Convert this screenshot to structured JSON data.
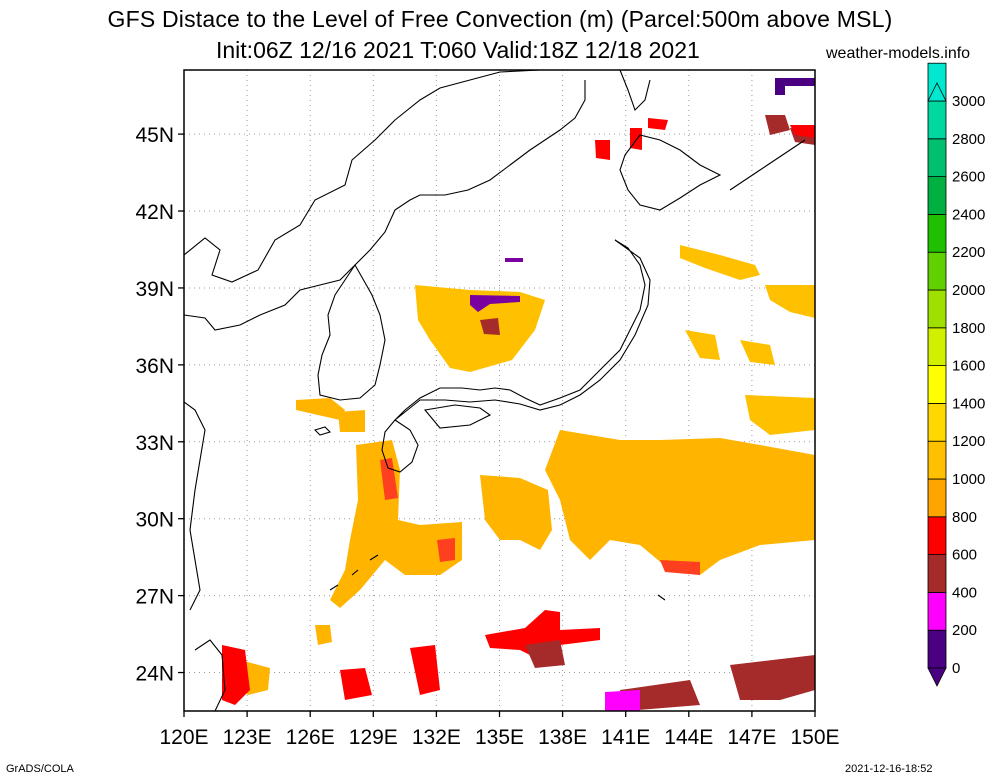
{
  "title": {
    "line1": "GFS Distace to the Level of Free Convection (m) (Parcel:500m above MSL)",
    "line2": "Init:06Z 12/16 2021 T:060 Valid:18Z 12/18 2021",
    "site": "weather-models.info"
  },
  "credits": {
    "left": "GrADS/COLA",
    "right": "2021-12-16-18:52"
  },
  "map": {
    "lon_range": [
      120,
      150
    ],
    "lat_range": [
      22.5,
      47.5
    ],
    "lon_ticks": [
      "120E",
      "123E",
      "126E",
      "129E",
      "132E",
      "135E",
      "138E",
      "141E",
      "144E",
      "147E",
      "150E"
    ],
    "lat_ticks": [
      "24N",
      "27N",
      "30N",
      "33N",
      "36N",
      "39N",
      "42N",
      "45N"
    ],
    "grid": "dotted"
  },
  "colorbar": {
    "labels": [
      "0",
      "200",
      "400",
      "600",
      "800",
      "1000",
      "1200",
      "1400",
      "1600",
      "1800",
      "2000",
      "2200",
      "2400",
      "2600",
      "2800",
      "3000"
    ],
    "colors": [
      "#4b0082",
      "#ff00ff",
      "#a52a2a",
      "#ff0000",
      "#ffa500",
      "#ffc000",
      "#ffd800",
      "#ffff00",
      "#d0f000",
      "#a0e000",
      "#60d000",
      "#20c000",
      "#00b040",
      "#00c070",
      "#00d8a0",
      "#00e8d0"
    ]
  }
}
